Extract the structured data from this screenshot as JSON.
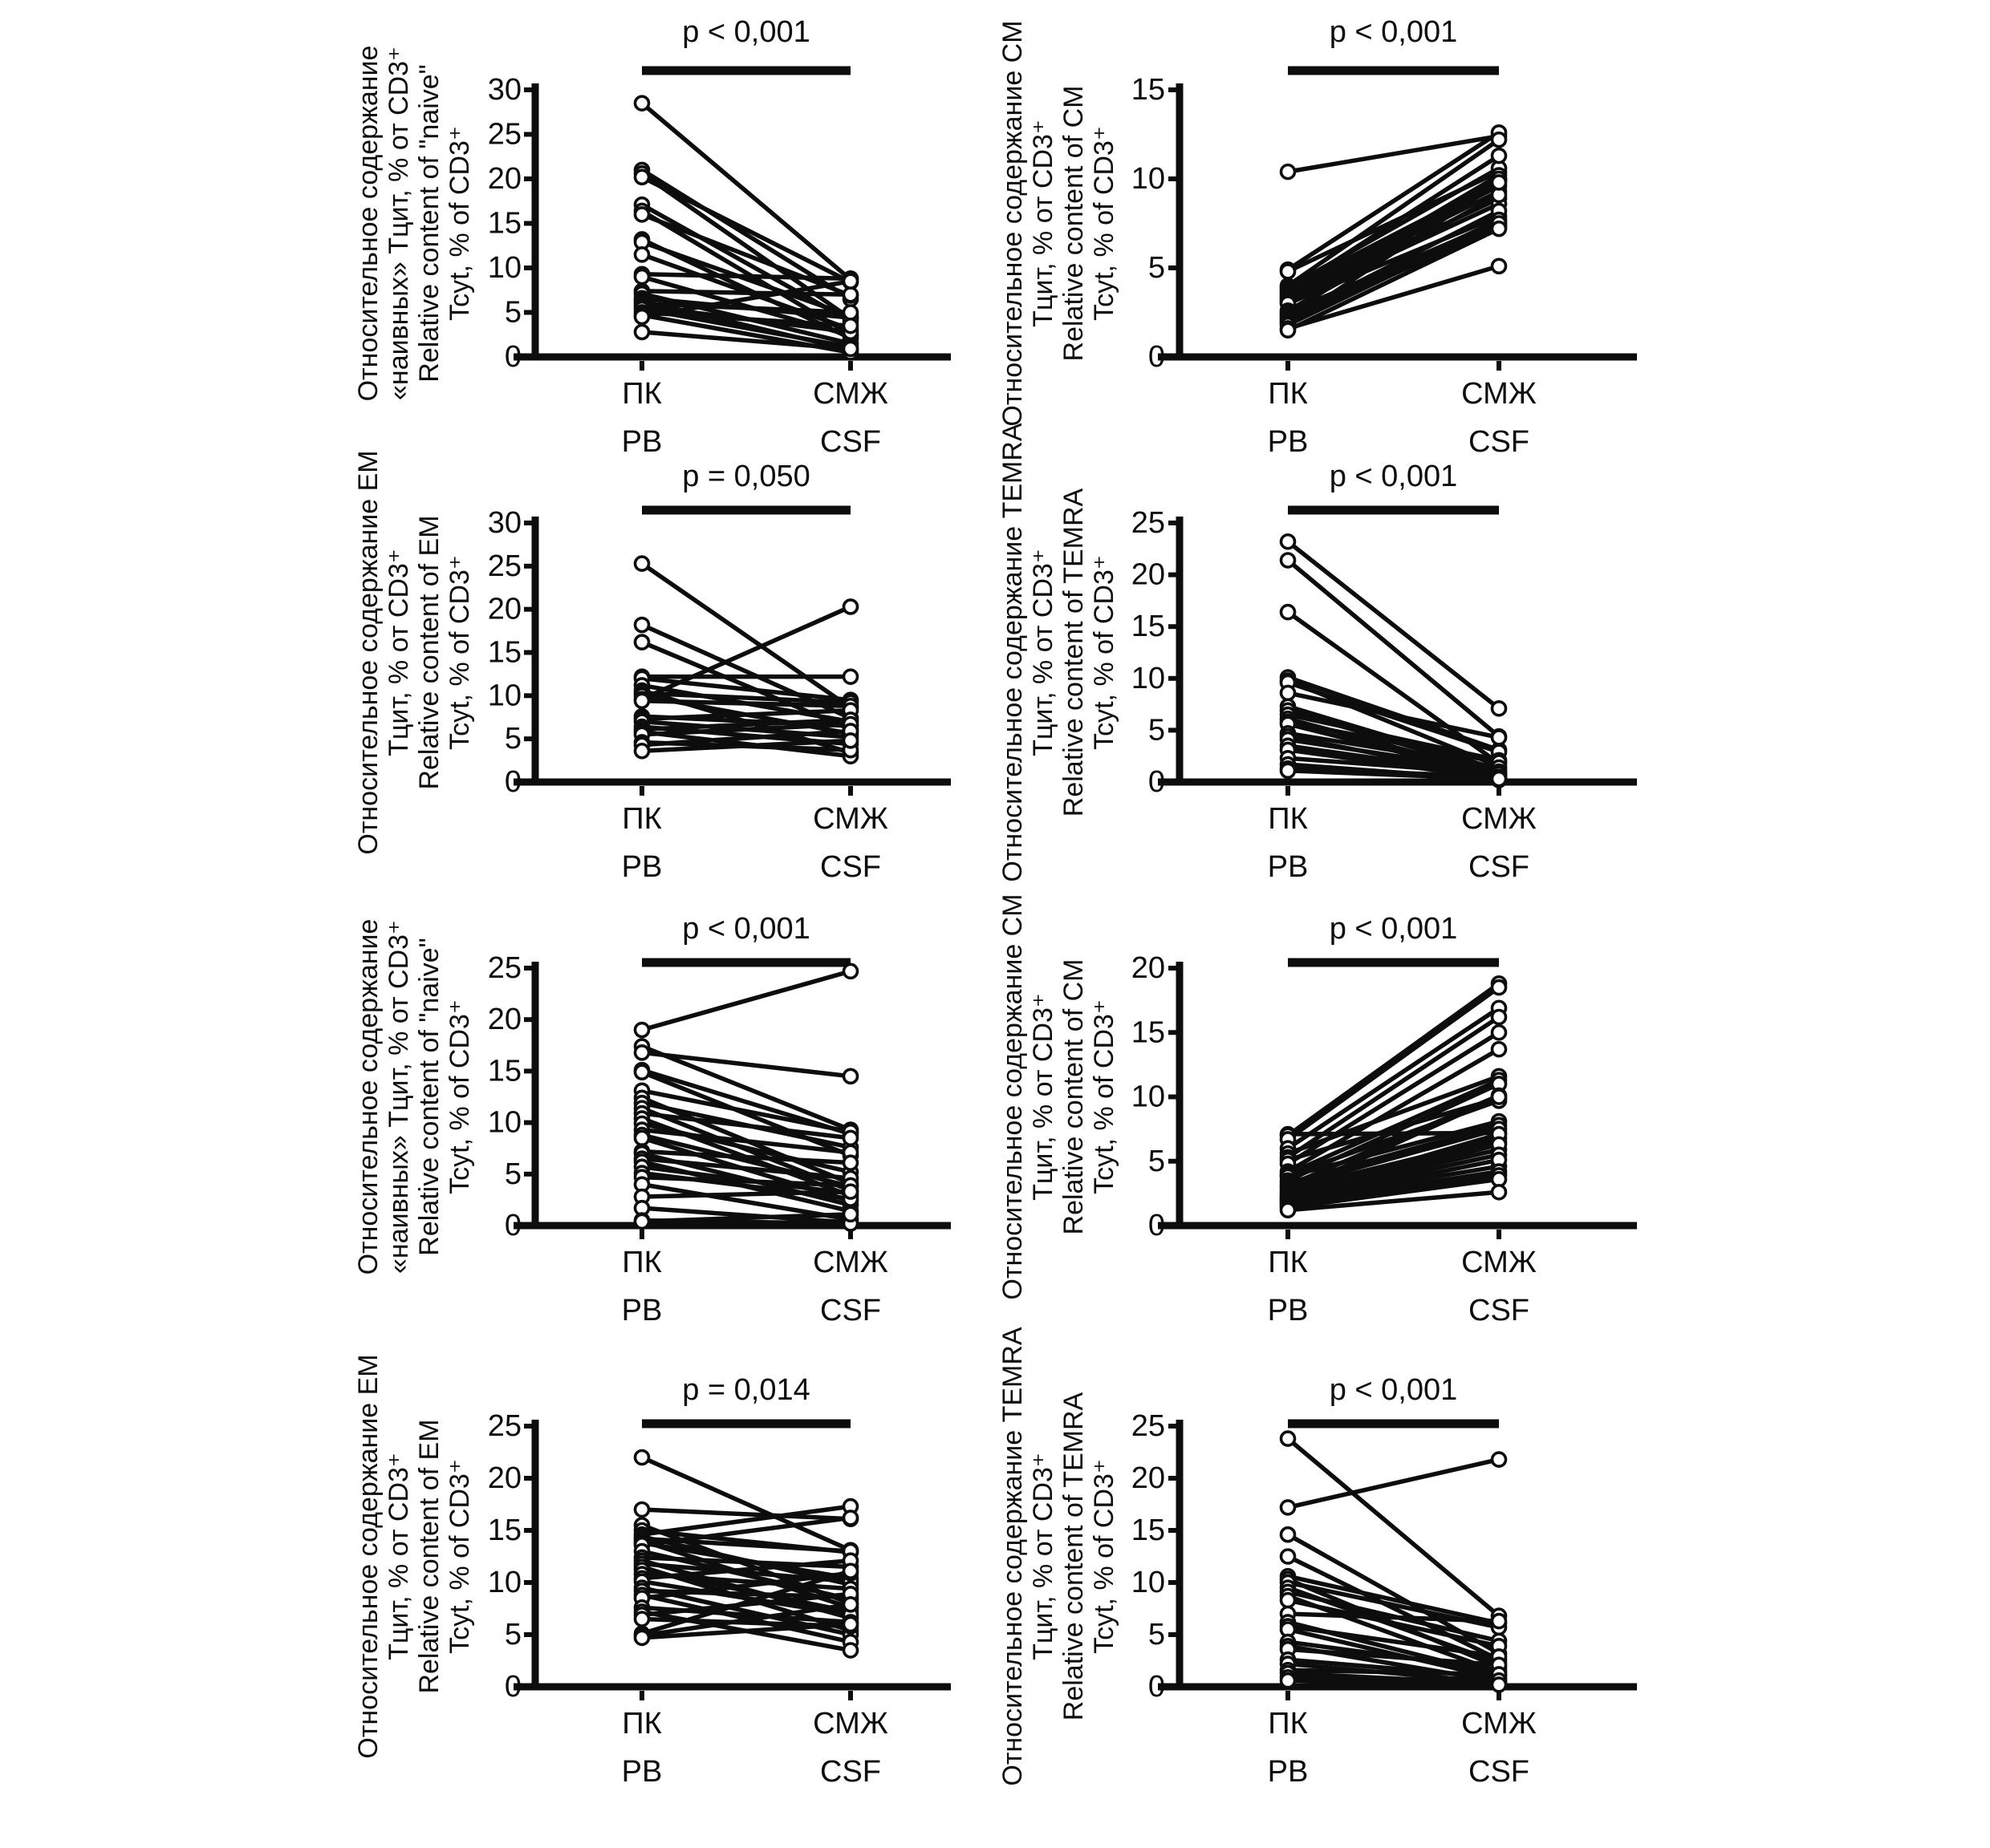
{
  "figure": {
    "background": "#ffffff",
    "ink_color": "#0d0d0d",
    "marker_fill": "#ffffff"
  },
  "chart_data": [
    {
      "type": "line",
      "subtype": "paired-slope",
      "panel": "row1-left",
      "title": [
        "Относительное содержание",
        "«наивных» Тцит, % от CD3⁺",
        "Relative content of \"naive\"",
        "Tcyt, % of CD3⁺"
      ],
      "p_label": "p < 0,001",
      "categories": [
        [
          "ПК",
          "PB"
        ],
        [
          "СМЖ",
          "CSF"
        ]
      ],
      "ylim": [
        0,
        30
      ],
      "yticks": [
        0,
        5,
        10,
        15,
        20,
        25,
        30
      ],
      "pairs_pb_csf": [
        [
          28.5,
          8.7
        ],
        [
          21.0,
          6.5
        ],
        [
          20.6,
          4.3
        ],
        [
          20.2,
          8.4
        ],
        [
          17.1,
          4.0
        ],
        [
          16.4,
          2.5
        ],
        [
          16.0,
          6.9
        ],
        [
          13.2,
          2.1
        ],
        [
          12.9,
          4.6
        ],
        [
          11.5,
          3.1
        ],
        [
          9.3,
          8.8
        ],
        [
          9.0,
          2.4
        ],
        [
          7.4,
          7.0
        ],
        [
          7.1,
          1.5
        ],
        [
          6.6,
          4.4
        ],
        [
          6.3,
          0.8
        ],
        [
          6.0,
          5.0
        ],
        [
          5.7,
          2.8
        ],
        [
          5.4,
          1.1
        ],
        [
          5.0,
          3.5
        ],
        [
          4.7,
          0.5
        ],
        [
          4.5,
          8.5
        ],
        [
          2.8,
          0.9
        ]
      ]
    },
    {
      "type": "line",
      "subtype": "paired-slope",
      "panel": "row1-right",
      "title": [
        "Относительное содержание CM",
        "Тцит, % от CD3⁺",
        "Relative content of CM",
        "Tcyt, % of CD3⁺"
      ],
      "p_label": "p < 0,001",
      "categories": [
        [
          "ПК",
          "PB"
        ],
        [
          "СМЖ",
          "CSF"
        ]
      ],
      "ylim": [
        0,
        15
      ],
      "yticks": [
        0,
        5,
        10,
        15
      ],
      "pairs_pb_csf": [
        [
          10.4,
          12.4
        ],
        [
          4.9,
          12.6
        ],
        [
          4.8,
          10.4
        ],
        [
          4.0,
          12.2
        ],
        [
          3.9,
          10.6
        ],
        [
          3.8,
          9.9
        ],
        [
          3.7,
          11.3
        ],
        [
          3.6,
          9.6
        ],
        [
          3.5,
          10.0
        ],
        [
          3.4,
          9.3
        ],
        [
          3.3,
          8.9
        ],
        [
          3.2,
          10.2
        ],
        [
          3.1,
          8.6
        ],
        [
          3.0,
          7.9
        ],
        [
          2.6,
          9.1
        ],
        [
          2.5,
          7.6
        ],
        [
          2.4,
          10.0
        ],
        [
          2.3,
          7.4
        ],
        [
          2.2,
          8.2
        ],
        [
          2.1,
          7.7
        ],
        [
          2.0,
          7.3
        ],
        [
          1.9,
          9.8
        ],
        [
          1.8,
          7.5
        ],
        [
          1.6,
          5.1
        ],
        [
          1.5,
          7.2
        ]
      ]
    },
    {
      "type": "line",
      "subtype": "paired-slope",
      "panel": "row2-left",
      "title": [
        "Относительное содержание EM",
        "Тцит, % от CD3⁺",
        "Relative content of EM",
        "Tcyt, % of CD3⁺"
      ],
      "p_label": "p = 0,050",
      "categories": [
        [
          "ПК",
          "PB"
        ],
        [
          "СМЖ",
          "CSF"
        ]
      ],
      "ylim": [
        0,
        30
      ],
      "yticks": [
        0,
        5,
        10,
        15,
        20,
        25,
        30
      ],
      "pairs_pb_csf": [
        [
          25.3,
          8.6
        ],
        [
          18.2,
          7.4
        ],
        [
          16.2,
          6.1
        ],
        [
          12.2,
          12.2
        ],
        [
          12.0,
          9.5
        ],
        [
          11.2,
          7.0
        ],
        [
          10.6,
          3.4
        ],
        [
          10.3,
          9.2
        ],
        [
          10.0,
          5.6
        ],
        [
          9.6,
          20.3
        ],
        [
          9.4,
          8.8
        ],
        [
          7.6,
          6.5
        ],
        [
          7.3,
          8.3
        ],
        [
          7.0,
          5.2
        ],
        [
          6.4,
          4.4
        ],
        [
          6.1,
          7.2
        ],
        [
          5.8,
          3.0
        ],
        [
          5.5,
          6.7
        ],
        [
          4.6,
          3.7
        ],
        [
          4.3,
          5.9
        ],
        [
          3.6,
          4.8
        ]
      ]
    },
    {
      "type": "line",
      "subtype": "paired-slope",
      "panel": "row2-right",
      "title": [
        "Относительное содержание TEMRA",
        "Тцит, % от CD3⁺",
        "Relative content of TEMRA",
        "Tcyt, % of CD3⁺"
      ],
      "p_label": "p < 0,001",
      "categories": [
        [
          "ПК",
          "PB"
        ],
        [
          "СМЖ",
          "CSF"
        ]
      ],
      "ylim": [
        0,
        25
      ],
      "yticks": [
        0,
        5,
        10,
        15,
        20,
        25
      ],
      "pairs_pb_csf": [
        [
          23.2,
          7.1
        ],
        [
          21.4,
          4.4
        ],
        [
          16.4,
          1.8
        ],
        [
          10.1,
          3.1
        ],
        [
          9.8,
          1.5
        ],
        [
          9.6,
          2.9
        ],
        [
          8.6,
          4.3
        ],
        [
          7.3,
          1.2
        ],
        [
          6.9,
          0.9
        ],
        [
          6.5,
          2.1
        ],
        [
          6.1,
          0.7
        ],
        [
          5.8,
          1.9
        ],
        [
          5.6,
          0.5
        ],
        [
          4.7,
          1.4
        ],
        [
          4.4,
          0.4
        ],
        [
          4.1,
          1.0
        ],
        [
          3.5,
          0.6
        ],
        [
          3.1,
          0.3
        ],
        [
          2.3,
          0.8
        ],
        [
          1.7,
          0.2
        ],
        [
          1.3,
          0.5
        ],
        [
          1.1,
          0.3
        ]
      ]
    },
    {
      "type": "line",
      "subtype": "paired-slope",
      "panel": "row3-left",
      "title": [
        "Относительное содержание",
        "«наивных» Тцит, % от CD3⁺",
        "Relative content of \"naive\"",
        "Tcyt, % of CD3⁺"
      ],
      "p_label": "p < 0,001",
      "categories": [
        [
          "ПК",
          "PB"
        ],
        [
          "СМЖ",
          "CSF"
        ]
      ],
      "ylim": [
        0,
        25
      ],
      "yticks": [
        0,
        5,
        10,
        15,
        20,
        25
      ],
      "pairs_pb_csf": [
        [
          19.0,
          24.7
        ],
        [
          17.4,
          9.3
        ],
        [
          16.8,
          14.5
        ],
        [
          15.1,
          8.9
        ],
        [
          14.9,
          6.8
        ],
        [
          13.1,
          9.1
        ],
        [
          12.4,
          4.1
        ],
        [
          11.9,
          7.6
        ],
        [
          11.4,
          3.4
        ],
        [
          10.9,
          8.5
        ],
        [
          10.4,
          2.9
        ],
        [
          9.9,
          5.2
        ],
        [
          9.3,
          7.1
        ],
        [
          8.8,
          3.8
        ],
        [
          8.5,
          2.4
        ],
        [
          7.2,
          6.1
        ],
        [
          7.0,
          2.0
        ],
        [
          6.5,
          4.6
        ],
        [
          6.2,
          1.4
        ],
        [
          5.7,
          3.1
        ],
        [
          5.1,
          2.6
        ],
        [
          4.7,
          3.9
        ],
        [
          4.0,
          0.6
        ],
        [
          2.8,
          3.3
        ],
        [
          1.7,
          0.3
        ],
        [
          0.5,
          0.2
        ],
        [
          0.4,
          1.1
        ]
      ]
    },
    {
      "type": "line",
      "subtype": "paired-slope",
      "panel": "row3-right",
      "title": [
        "Относительное содержание CM",
        "Тцит, % от CD3⁺",
        "Relative content of CM",
        "Tcyt, % of CD3⁺"
      ],
      "p_label": "p < 0,001",
      "categories": [
        [
          "ПК",
          "PB"
        ],
        [
          "СМЖ",
          "CSF"
        ]
      ],
      "ylim": [
        0,
        20
      ],
      "yticks": [
        0,
        5,
        10,
        15,
        20
      ],
      "pairs_pb_csf": [
        [
          7.1,
          7.2
        ],
        [
          7.0,
          18.8
        ],
        [
          6.7,
          18.5
        ],
        [
          6.0,
          16.9
        ],
        [
          5.6,
          11.6
        ],
        [
          5.3,
          16.2
        ],
        [
          5.1,
          9.9
        ],
        [
          4.8,
          15.0
        ],
        [
          4.2,
          13.7
        ],
        [
          4.0,
          11.3
        ],
        [
          3.9,
          9.7
        ],
        [
          3.8,
          8.1
        ],
        [
          3.5,
          11.0
        ],
        [
          3.3,
          7.8
        ],
        [
          3.1,
          10.1
        ],
        [
          3.0,
          7.5
        ],
        [
          2.8,
          6.8
        ],
        [
          2.6,
          10.0
        ],
        [
          2.5,
          6.5
        ],
        [
          2.3,
          7.1
        ],
        [
          2.2,
          5.9
        ],
        [
          2.1,
          6.3
        ],
        [
          2.0,
          5.5
        ],
        [
          1.9,
          4.6
        ],
        [
          1.8,
          5.1
        ],
        [
          1.7,
          4.2
        ],
        [
          1.5,
          3.9
        ],
        [
          1.4,
          3.6
        ],
        [
          1.2,
          2.6
        ]
      ]
    },
    {
      "type": "line",
      "subtype": "paired-slope",
      "panel": "row4-left",
      "title": [
        "Относительное содержание EM",
        "Тцит, % от CD3⁺",
        "Relative content of EM",
        "Tcyt, % of CD3⁺"
      ],
      "p_label": "p = 0,014",
      "categories": [
        [
          "ПК",
          "PB"
        ],
        [
          "СМЖ",
          "CSF"
        ]
      ],
      "ylim": [
        0,
        25
      ],
      "yticks": [
        0,
        5,
        10,
        15,
        20,
        25
      ],
      "pairs_pb_csf": [
        [
          22.0,
          13.1
        ],
        [
          17.0,
          16.1
        ],
        [
          15.5,
          8.0
        ],
        [
          15.0,
          12.9
        ],
        [
          14.6,
          17.3
        ],
        [
          14.4,
          9.8
        ],
        [
          14.2,
          13.0
        ],
        [
          14.0,
          7.6
        ],
        [
          13.8,
          10.4
        ],
        [
          13.6,
          16.2
        ],
        [
          13.0,
          8.4
        ],
        [
          12.4,
          11.5
        ],
        [
          12.1,
          6.6
        ],
        [
          11.8,
          10.1
        ],
        [
          11.5,
          5.4
        ],
        [
          11.2,
          7.2
        ],
        [
          10.8,
          9.4
        ],
        [
          10.4,
          12.1
        ],
        [
          10.1,
          6.9
        ],
        [
          9.5,
          5.0
        ],
        [
          9.2,
          8.6
        ],
        [
          8.8,
          4.3
        ],
        [
          8.5,
          10.9
        ],
        [
          7.6,
          6.2
        ],
        [
          7.2,
          3.5
        ],
        [
          6.9,
          8.9
        ],
        [
          6.5,
          5.8
        ],
        [
          5.1,
          11.1
        ],
        [
          4.9,
          7.9
        ],
        [
          4.7,
          6.0
        ]
      ]
    },
    {
      "type": "line",
      "subtype": "paired-slope",
      "panel": "row4-right",
      "title": [
        "Относительное содержание TEMRA",
        "Тцит, % от CD3⁺",
        "Relative content of TEMRA",
        "Tcyt, % of CD3⁺"
      ],
      "p_label": "p < 0,001",
      "categories": [
        [
          "ПК",
          "PB"
        ],
        [
          "СМЖ",
          "CSF"
        ]
      ],
      "ylim": [
        0,
        25
      ],
      "yticks": [
        0,
        5,
        10,
        15,
        20,
        25
      ],
      "pairs_pb_csf": [
        [
          23.8,
          6.8
        ],
        [
          17.2,
          21.8
        ],
        [
          14.6,
          3.2
        ],
        [
          12.5,
          2.6
        ],
        [
          10.6,
          6.1
        ],
        [
          10.3,
          1.9
        ],
        [
          10.0,
          5.7
        ],
        [
          9.5,
          2.3
        ],
        [
          9.1,
          4.4
        ],
        [
          8.7,
          1.4
        ],
        [
          8.3,
          3.9
        ],
        [
          7.0,
          6.3
        ],
        [
          6.2,
          1.1
        ],
        [
          5.8,
          2.9
        ],
        [
          5.5,
          0.8
        ],
        [
          4.3,
          1.6
        ],
        [
          3.9,
          0.5
        ],
        [
          3.6,
          2.1
        ],
        [
          2.6,
          0.9
        ],
        [
          2.2,
          0.4
        ],
        [
          1.6,
          1.2
        ],
        [
          1.3,
          0.3
        ],
        [
          0.9,
          0.6
        ],
        [
          0.6,
          0.2
        ]
      ]
    }
  ]
}
